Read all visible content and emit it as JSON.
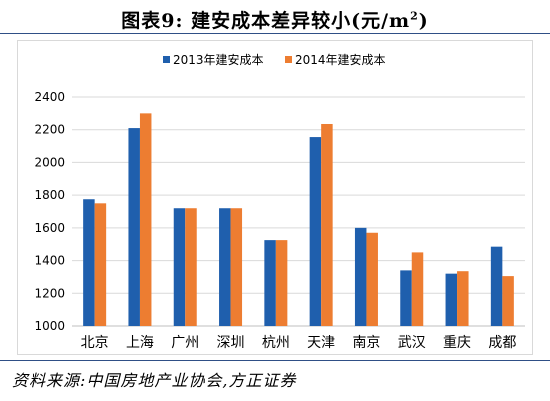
{
  "figure": {
    "title_prefix": "图表9:",
    "title_main": "建安成本差异较小(元/m",
    "title_sup": "2",
    "title_suffix": ")",
    "source": "资料来源:中国房地产业协会,方正证券"
  },
  "chart_data": {
    "type": "bar",
    "categories": [
      "北京",
      "上海",
      "广州",
      "深圳",
      "杭州",
      "天津",
      "南京",
      "武汉",
      "重庆",
      "成都"
    ],
    "series": [
      {
        "name": "2013年建安成本",
        "color": "#1f5fad",
        "values": [
          1775,
          2210,
          1720,
          1720,
          1525,
          2155,
          1600,
          1340,
          1320,
          1485
        ]
      },
      {
        "name": "2014年建安成本",
        "color": "#ed7d31",
        "values": [
          1750,
          2300,
          1720,
          1720,
          1525,
          2235,
          1570,
          1450,
          1335,
          1305
        ]
      }
    ],
    "ylim": [
      1000,
      2400
    ],
    "yticks": [
      1000,
      1200,
      1400,
      1600,
      1800,
      2000,
      2200,
      2400
    ],
    "grid": true,
    "legend_position": "top-center"
  }
}
